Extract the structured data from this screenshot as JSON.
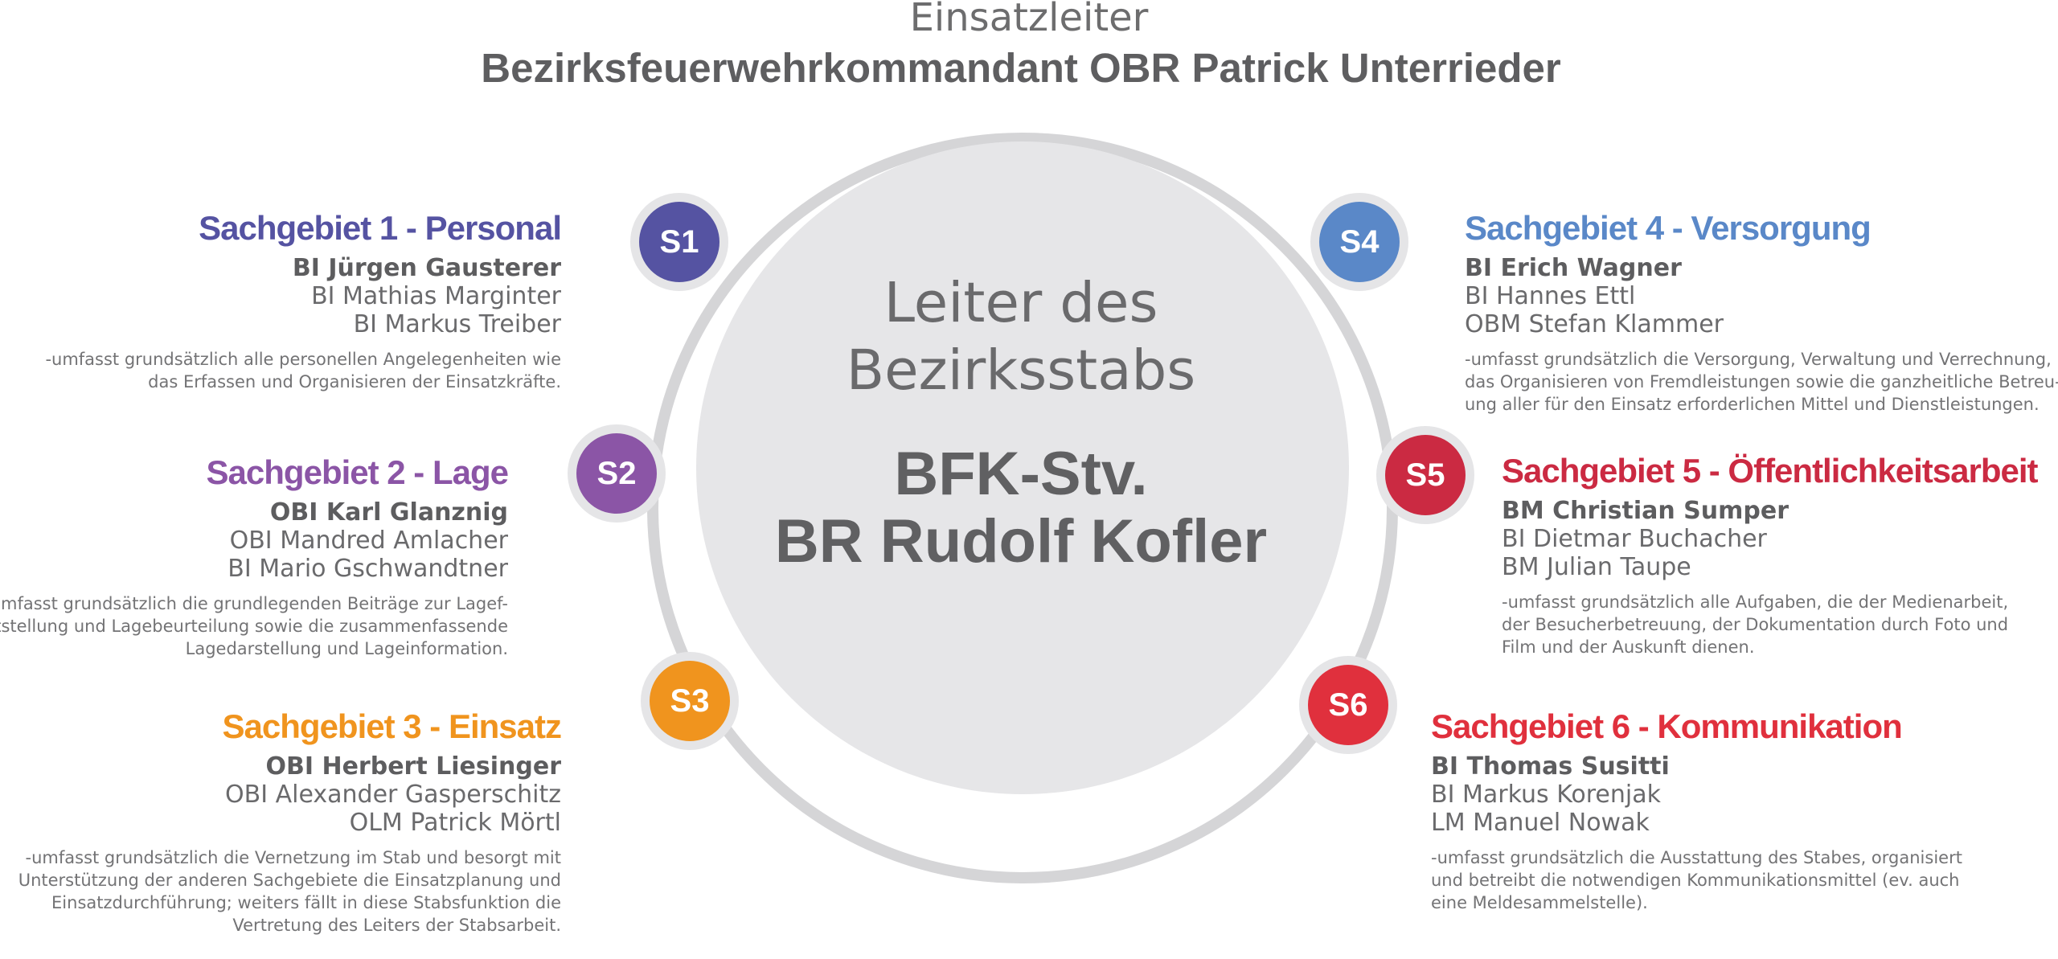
{
  "header": {
    "title": "Einsatzleiter",
    "subtitle": "Bezirksfeuerwehrkommandant OBR Patrick Unterrieder"
  },
  "center": {
    "lead_lines": [
      "Leiter des",
      "Bezirksstabs"
    ],
    "name_lines": [
      "BFK-Stv.",
      "BR Rudolf Kofler"
    ]
  },
  "colors": {
    "ring": "#d5d5d7",
    "center_disc": "#e6e6e8",
    "s1": "#5553a2",
    "s2": "#8b55a6",
    "s3": "#f0941e",
    "s4": "#5a88c8",
    "s5": "#cb2a42",
    "s6": "#e0303d"
  },
  "sections": [
    {
      "badge": "S1",
      "title": "Sachgebiet 1 - Personal",
      "lead": "BI Jürgen Gausterer",
      "members": [
        "BI Mathias Marginter",
        "BI Markus Treiber"
      ],
      "description": [
        "-umfasst grundsätzlich alle personellen Angelegenheiten wie",
        "das Erfassen und Organisieren der Einsatzkräfte."
      ]
    },
    {
      "badge": "S2",
      "title": "Sachgebiet 2 - Lage",
      "lead": "OBI Karl Glanznig",
      "members": [
        "OBI Mandred Amlacher",
        "BI Mario Gschwandtner"
      ],
      "description": [
        "-umfasst grundsätzlich die grundlegenden Beiträge zur Lagef-",
        "eststellung und Lagebeurteilung sowie die zusammenfassende",
        "Lagedarstellung und Lageinformation."
      ]
    },
    {
      "badge": "S3",
      "title": "Sachgebiet 3 - Einsatz",
      "lead": "OBI Herbert Liesinger",
      "members": [
        "OBI Alexander Gasperschitz",
        "OLM Patrick Mörtl"
      ],
      "description": [
        "-umfasst grundsätzlich die Vernetzung im Stab und besorgt mit",
        "Unterstützung der anderen Sachgebiete die Einsatzplanung und",
        "Einsatzdurchführung; weiters fällt in diese Stabsfunktion die",
        "Vertretung des Leiters der Stabsarbeit."
      ]
    },
    {
      "badge": "S4",
      "title": "Sachgebiet 4 - Versorgung",
      "lead": "BI Erich Wagner",
      "members": [
        "BI Hannes Ettl",
        "OBM Stefan Klammer"
      ],
      "description": [
        "-umfasst grundsätzlich die Versorgung, Verwaltung und Verrechnung,",
        "das Organisieren von Fremdleistungen sowie die ganzheitliche Betreu-",
        "ung aller für den Einsatz erforderlichen Mittel und Dienstleistungen."
      ]
    },
    {
      "badge": "S5",
      "title": "Sachgebiet 5 - Öffentlichkeitsarbeit",
      "lead": "BM Christian Sumper",
      "members": [
        "BI Dietmar Buchacher",
        "BM Julian Taupe"
      ],
      "description": [
        "-umfasst grundsätzlich alle Aufgaben, die der Medienarbeit,",
        "der Besucherbetreuung, der Dokumentation durch Foto und",
        "Film und der Auskunft dienen."
      ]
    },
    {
      "badge": "S6",
      "title": "Sachgebiet 6 - Kommunikation",
      "lead": "BI Thomas Susitti",
      "members": [
        "BI Markus Korenjak",
        "LM Manuel Nowak"
      ],
      "description": [
        "-umfasst grundsätzlich die Ausstattung des Stabes, organisiert",
        "und betreibt die notwendigen Kommunikationsmittel (ev. auch",
        "eine Meldesammelstelle)."
      ]
    }
  ]
}
